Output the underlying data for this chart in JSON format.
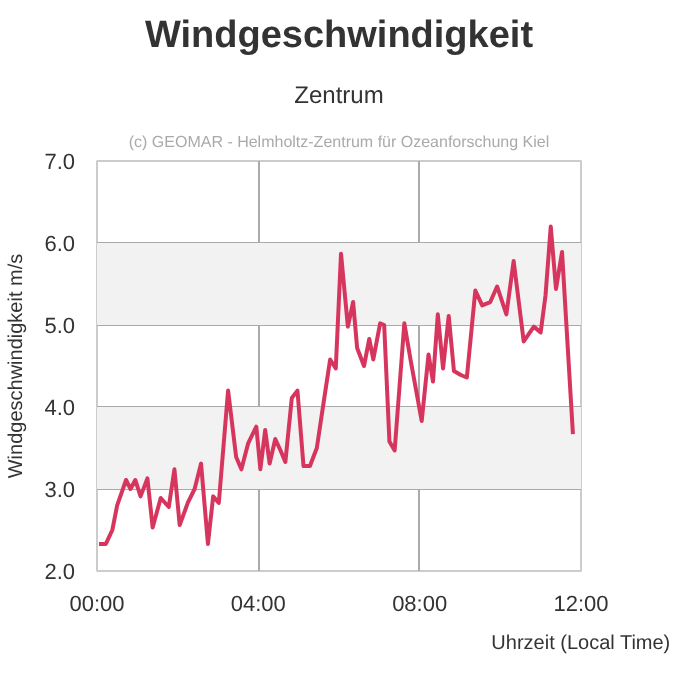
{
  "chart_data": {
    "type": "line",
    "title": "Windgeschwindigkeit",
    "subtitle": "Zentrum",
    "annotations": [
      "(c) GEOMAR - Helmholtz-Zentrum für Ozeanforschung Kiel"
    ],
    "xlabel": "Uhrzeit (Local Time)",
    "ylabel": "Windgeschwindigkeit m/s",
    "x": [
      0.05,
      0.22,
      0.38,
      0.5,
      0.72,
      0.83,
      0.95,
      1.08,
      1.25,
      1.38,
      1.58,
      1.78,
      1.92,
      2.05,
      2.25,
      2.42,
      2.58,
      2.75,
      2.88,
      3.02,
      3.25,
      3.45,
      3.58,
      3.75,
      3.95,
      4.05,
      4.17,
      4.28,
      4.42,
      4.55,
      4.67,
      4.83,
      4.97,
      5.12,
      5.28,
      5.45,
      5.62,
      5.78,
      5.92,
      6.05,
      6.22,
      6.35,
      6.45,
      6.62,
      6.75,
      6.85,
      7.02,
      7.12,
      7.25,
      7.38,
      7.62,
      7.78,
      8.05,
      8.22,
      8.33,
      8.45,
      8.58,
      8.72,
      8.85,
      9.02,
      9.17,
      9.38,
      9.55,
      9.75,
      9.92,
      10.15,
      10.33,
      10.58,
      10.83,
      11.0,
      11.12,
      11.25,
      11.38,
      11.53,
      11.8
    ],
    "series": [
      {
        "color": "#d6365e",
        "values": [
          2.33,
          2.33,
          2.5,
          2.8,
          3.11,
          3.0,
          3.11,
          2.91,
          3.13,
          2.53,
          2.89,
          2.78,
          3.24,
          2.56,
          2.83,
          3.0,
          3.31,
          2.33,
          2.91,
          2.83,
          4.2,
          3.39,
          3.24,
          3.56,
          3.76,
          3.24,
          3.72,
          3.31,
          3.61,
          3.47,
          3.33,
          4.11,
          4.2,
          3.28,
          3.28,
          3.5,
          4.06,
          4.58,
          4.47,
          5.87,
          4.98,
          5.28,
          4.72,
          4.5,
          4.83,
          4.58,
          5.02,
          5.0,
          3.58,
          3.47,
          5.02,
          4.56,
          3.83,
          4.64,
          4.31,
          5.13,
          4.47,
          5.11,
          4.44,
          4.39,
          4.36,
          5.42,
          5.24,
          5.28,
          5.47,
          5.13,
          5.78,
          4.8,
          4.98,
          4.91,
          5.36,
          6.2,
          5.44,
          5.89,
          3.67
        ]
      }
    ],
    "xlim": [
      0,
      12
    ],
    "xticks": [
      {
        "value": 0,
        "label": "00:00"
      },
      {
        "value": 4,
        "label": "04:00"
      },
      {
        "value": 8,
        "label": "08:00"
      },
      {
        "value": 12,
        "label": "12:00"
      }
    ],
    "ylim": [
      2,
      7
    ],
    "yticks": [
      {
        "value": 2,
        "label": "2.0"
      },
      {
        "value": 3,
        "label": "3.0"
      },
      {
        "value": 4,
        "label": "4.0"
      },
      {
        "value": 5,
        "label": "5.0"
      },
      {
        "value": 6,
        "label": "6.0"
      },
      {
        "value": 7,
        "label": "7.0"
      }
    ],
    "bands": [
      {
        "axis": "y",
        "from": 3,
        "to": 4,
        "color": "#f2f2f2"
      },
      {
        "axis": "y",
        "from": 5,
        "to": 6,
        "color": "#f2f2f2"
      }
    ],
    "grid": true,
    "marker": "none",
    "line_style": "solid"
  }
}
